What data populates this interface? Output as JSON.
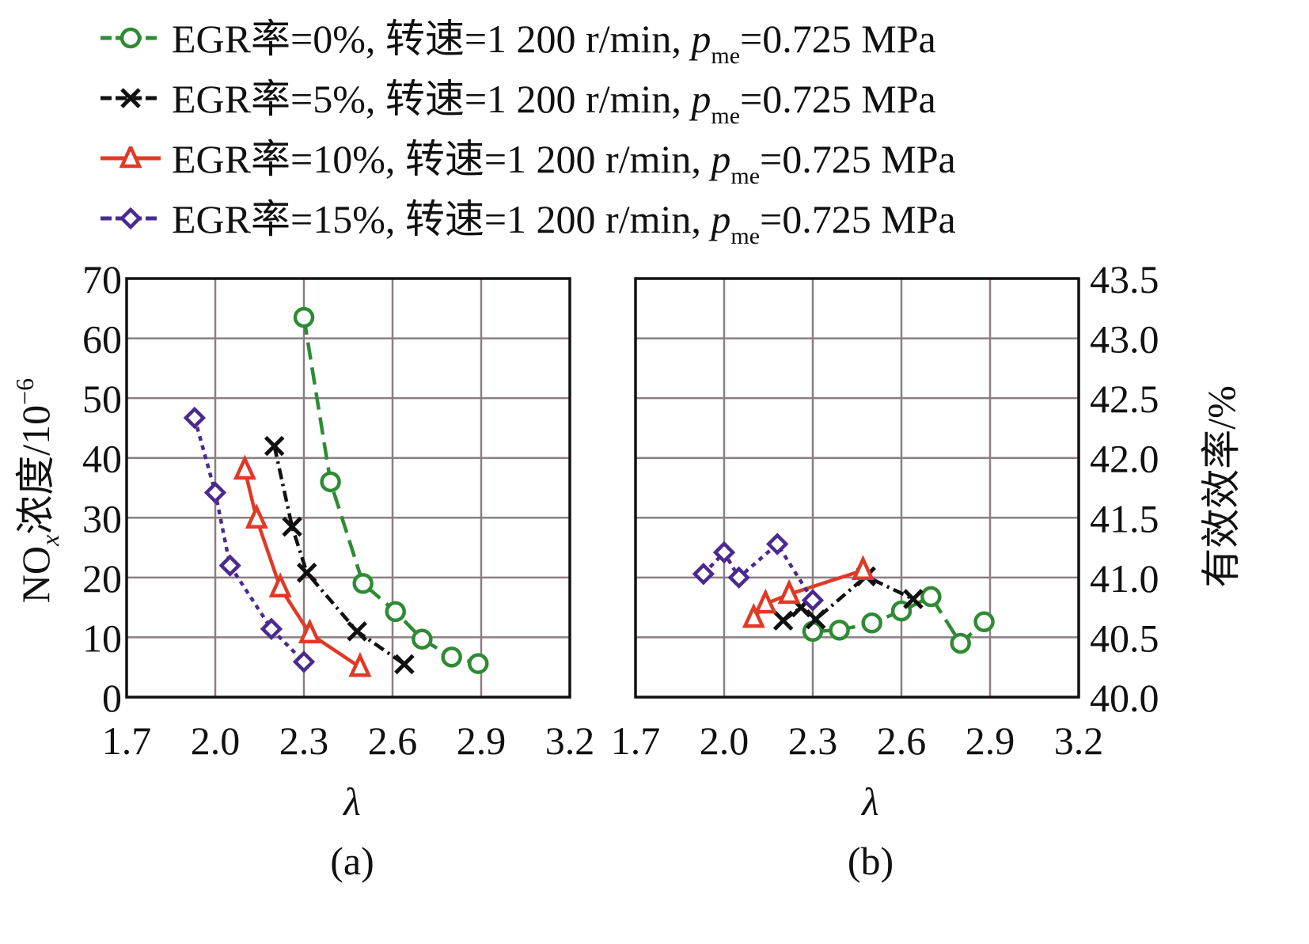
{
  "legend": [
    {
      "series": "egr0",
      "label_prefix": "EGR率=0%, 转速=1 200 r/min, ",
      "p": "p",
      "sub": "me",
      "label_suffix": "=0.725 MPa"
    },
    {
      "series": "egr5",
      "label_prefix": "EGR率=5%, 转速=1 200 r/min, ",
      "p": "p",
      "sub": "me",
      "label_suffix": "=0.725 MPa"
    },
    {
      "series": "egr10",
      "label_prefix": "EGR率=10%, 转速=1 200 r/min, ",
      "p": "p",
      "sub": "me",
      "label_suffix": "=0.725 MPa"
    },
    {
      "series": "egr15",
      "label_prefix": "EGR率=15%, 转速=1 200 r/min, ",
      "p": "p",
      "sub": "me",
      "label_suffix": "=0.725 MPa"
    }
  ],
  "styles": {
    "egr0": {
      "color": "#2e8b34",
      "dash": "22,10",
      "marker": "circle"
    },
    "egr5": {
      "color": "#111111",
      "dash": "14,6,3,6",
      "marker": "x"
    },
    "egr10": {
      "color": "#e03a26",
      "dash": "",
      "marker": "triangle"
    },
    "egr15": {
      "color": "#4b2a8f",
      "dash": "6,6",
      "marker": "diamond"
    }
  },
  "panels": {
    "a": {
      "label": "(a)",
      "xlabel": "λ"
    },
    "b": {
      "label": "(b)",
      "xlabel": "λ"
    }
  },
  "chart_data": [
    {
      "type": "line",
      "title": "(a)",
      "xlabel": "λ",
      "ylabel": "NOx浓度/10⁻⁶",
      "xlim": [
        1.7,
        3.2
      ],
      "ylim": [
        0,
        70
      ],
      "xticks": [
        "1.7",
        "2.0",
        "2.3",
        "2.6",
        "2.9",
        "3.2"
      ],
      "yticks": [
        "0",
        "10",
        "20",
        "30",
        "40",
        "50",
        "60",
        "70"
      ],
      "grid": true,
      "legend_position": "top",
      "series": [
        {
          "name": "EGR率=0%, 转速=1 200 r/min, pme=0.725 MPa",
          "key": "egr0",
          "x": [
            2.3,
            2.39,
            2.5,
            2.61,
            2.7,
            2.8,
            2.89
          ],
          "y": [
            63.5,
            36.0,
            19.0,
            14.3,
            9.7,
            6.7,
            5.6
          ]
        },
        {
          "name": "EGR率=5%, 转速=1 200 r/min, pme=0.725 MPa",
          "key": "egr5",
          "x": [
            2.2,
            2.26,
            2.31,
            2.48,
            2.64
          ],
          "y": [
            42.0,
            28.5,
            20.8,
            11.0,
            5.5
          ]
        },
        {
          "name": "EGR率=10%, 转速=1 200 r/min, pme=0.725 MPa",
          "key": "egr10",
          "x": [
            2.1,
            2.14,
            2.22,
            2.32,
            2.49
          ],
          "y": [
            38.0,
            29.8,
            18.3,
            10.6,
            5.0
          ]
        },
        {
          "name": "EGR率=15%, 转速=1 200 r/min, pme=0.725 MPa",
          "key": "egr15",
          "x": [
            1.93,
            2.0,
            2.05,
            2.19,
            2.3
          ],
          "y": [
            46.7,
            34.2,
            22.0,
            11.4,
            5.9
          ]
        }
      ]
    },
    {
      "type": "line",
      "title": "(b)",
      "xlabel": "λ",
      "ylabel": "有效效率/%",
      "xlim": [
        1.7,
        3.2
      ],
      "ylim": [
        40.0,
        43.5
      ],
      "xticks": [
        "1.7",
        "2.0",
        "2.3",
        "2.6",
        "2.9",
        "3.2"
      ],
      "yticks": [
        "40.0",
        "40.5",
        "41.0",
        "41.5",
        "42.0",
        "42.5",
        "43.0",
        "43.5"
      ],
      "y_axis_side": "right",
      "grid": true,
      "series": [
        {
          "name": "EGR率=0%, 转速=1 200 r/min, pme=0.725 MPa",
          "key": "egr0",
          "x": [
            2.3,
            2.39,
            2.5,
            2.6,
            2.7,
            2.8,
            2.88
          ],
          "y": [
            40.55,
            40.56,
            40.62,
            40.72,
            40.84,
            40.45,
            40.63
          ]
        },
        {
          "name": "EGR率=5%, 转速=1 200 r/min, pme=0.725 MPa",
          "key": "egr5",
          "x": [
            2.2,
            2.26,
            2.31,
            2.48,
            2.64
          ],
          "y": [
            40.64,
            40.75,
            40.65,
            41.01,
            40.82
          ]
        },
        {
          "name": "EGR率=10%, 转速=1 200 r/min, pme=0.725 MPa",
          "key": "egr10",
          "x": [
            2.1,
            2.14,
            2.22,
            2.47
          ],
          "y": [
            40.66,
            40.78,
            40.86,
            41.06
          ]
        },
        {
          "name": "EGR率=15%, 转速=1 200 r/min, pme=0.725 MPa",
          "key": "egr15",
          "x": [
            1.93,
            2.0,
            2.05,
            2.18,
            2.3
          ],
          "y": [
            41.03,
            41.21,
            41.0,
            41.28,
            40.81
          ]
        }
      ]
    }
  ]
}
